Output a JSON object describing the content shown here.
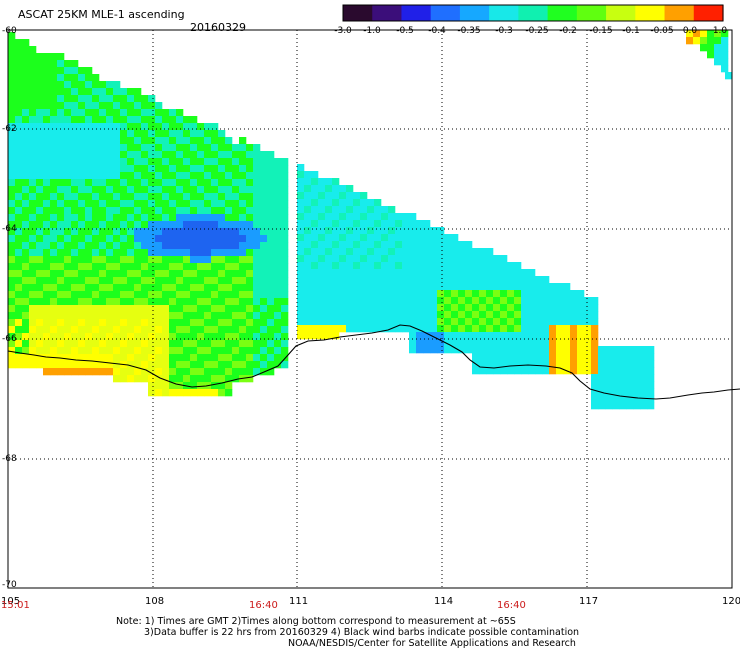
{
  "header": {
    "title": "ASCAT 25KM MLE-1 ascending",
    "date": "20160329"
  },
  "colorbar": {
    "labels": [
      "-3.0",
      "-1.0",
      "-0.5",
      "-0.4",
      "-0.35",
      "-0.3",
      "-0.25",
      "-0.2",
      "-0.15",
      "-0.1",
      "-0.05",
      "0.0",
      "1.0"
    ],
    "colors": [
      "#2a0a2e",
      "#3b0e7a",
      "#2020e8",
      "#1f6fff",
      "#16a8ff",
      "#18e8e8",
      "#10f0b0",
      "#20ff20",
      "#60ff10",
      "#c8ff10",
      "#ffff00",
      "#ffa000",
      "#ff2000"
    ]
  },
  "map": {
    "lat_labels": [
      "-60",
      "-62",
      "-64",
      "-66",
      "-68",
      "-70"
    ],
    "lon_labels": [
      "105",
      "108",
      "111",
      "114",
      "117",
      "120"
    ],
    "time_labels": [
      "15:01",
      "16:40",
      "16:40"
    ]
  },
  "footer": {
    "note1": "Note: 1) Times are GMT 2)Times along bottom correspond to measurement at ~65S",
    "note2": "3)Data buffer is 22 hrs from 20160329 4) Black wind barbs indicate possible contamination",
    "note3": "NOAA/NESDIS/Center for Satellite Applications and Research"
  }
}
